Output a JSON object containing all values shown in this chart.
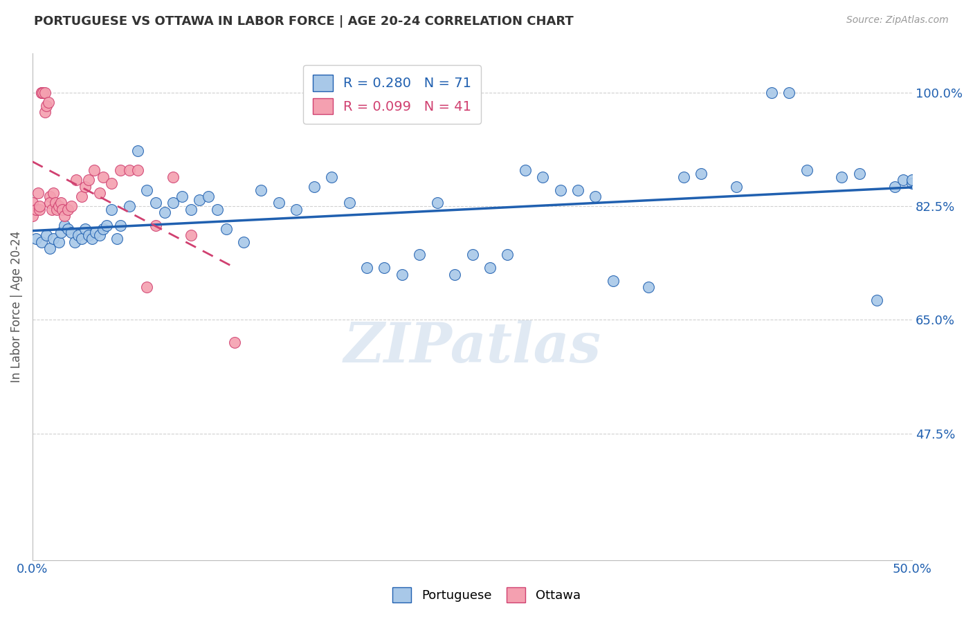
{
  "title": "PORTUGUESE VS OTTAWA IN LABOR FORCE | AGE 20-24 CORRELATION CHART",
  "source": "Source: ZipAtlas.com",
  "xlabel": "",
  "ylabel": "In Labor Force | Age 20-24",
  "xlim": [
    0.0,
    0.5
  ],
  "ylim": [
    0.28,
    1.06
  ],
  "yticks": [
    0.475,
    0.65,
    0.825,
    1.0
  ],
  "ytick_labels": [
    "47.5%",
    "65.0%",
    "82.5%",
    "100.0%"
  ],
  "xticks": [
    0.0,
    0.1,
    0.2,
    0.3,
    0.4,
    0.5
  ],
  "xtick_labels": [
    "0.0%",
    "",
    "",
    "",
    "",
    "50.0%"
  ],
  "blue_R": 0.28,
  "blue_N": 71,
  "pink_R": 0.099,
  "pink_N": 41,
  "blue_color": "#a8c8e8",
  "pink_color": "#f4a0b0",
  "trendline_blue_color": "#2060b0",
  "trendline_pink_color": "#d04070",
  "blue_x": [
    0.002,
    0.005,
    0.008,
    0.01,
    0.012,
    0.015,
    0.016,
    0.018,
    0.02,
    0.022,
    0.024,
    0.026,
    0.028,
    0.03,
    0.032,
    0.034,
    0.036,
    0.038,
    0.04,
    0.042,
    0.045,
    0.048,
    0.05,
    0.055,
    0.06,
    0.065,
    0.07,
    0.075,
    0.08,
    0.085,
    0.09,
    0.095,
    0.1,
    0.105,
    0.11,
    0.12,
    0.13,
    0.14,
    0.15,
    0.16,
    0.17,
    0.18,
    0.19,
    0.2,
    0.21,
    0.22,
    0.23,
    0.24,
    0.25,
    0.26,
    0.27,
    0.28,
    0.29,
    0.3,
    0.31,
    0.32,
    0.33,
    0.35,
    0.37,
    0.38,
    0.4,
    0.42,
    0.43,
    0.44,
    0.46,
    0.47,
    0.48,
    0.49,
    0.495,
    0.5,
    0.5
  ],
  "blue_y": [
    0.775,
    0.77,
    0.78,
    0.76,
    0.775,
    0.77,
    0.785,
    0.795,
    0.79,
    0.785,
    0.77,
    0.78,
    0.775,
    0.79,
    0.78,
    0.775,
    0.785,
    0.78,
    0.79,
    0.795,
    0.82,
    0.775,
    0.795,
    0.825,
    0.91,
    0.85,
    0.83,
    0.815,
    0.83,
    0.84,
    0.82,
    0.835,
    0.84,
    0.82,
    0.79,
    0.77,
    0.85,
    0.83,
    0.82,
    0.855,
    0.87,
    0.83,
    0.73,
    0.73,
    0.72,
    0.75,
    0.83,
    0.72,
    0.75,
    0.73,
    0.75,
    0.88,
    0.87,
    0.85,
    0.85,
    0.84,
    0.71,
    0.7,
    0.87,
    0.875,
    0.855,
    1.0,
    1.0,
    0.88,
    0.87,
    0.875,
    0.68,
    0.855,
    0.865,
    0.86,
    0.865
  ],
  "pink_x": [
    0.0,
    0.0,
    0.002,
    0.003,
    0.004,
    0.004,
    0.005,
    0.005,
    0.006,
    0.007,
    0.007,
    0.008,
    0.009,
    0.01,
    0.01,
    0.011,
    0.012,
    0.013,
    0.014,
    0.015,
    0.016,
    0.017,
    0.018,
    0.02,
    0.022,
    0.025,
    0.028,
    0.03,
    0.032,
    0.035,
    0.038,
    0.04,
    0.045,
    0.05,
    0.055,
    0.06,
    0.065,
    0.07,
    0.08,
    0.09,
    0.115
  ],
  "pink_y": [
    0.81,
    0.83,
    0.82,
    0.845,
    0.82,
    0.825,
    1.0,
    1.0,
    1.0,
    1.0,
    0.97,
    0.98,
    0.985,
    0.84,
    0.83,
    0.82,
    0.845,
    0.83,
    0.82,
    0.825,
    0.83,
    0.82,
    0.81,
    0.82,
    0.825,
    0.865,
    0.84,
    0.855,
    0.865,
    0.88,
    0.845,
    0.87,
    0.86,
    0.88,
    0.88,
    0.88,
    0.7,
    0.795,
    0.87,
    0.78,
    0.615
  ],
  "background_color": "#ffffff",
  "grid_color": "#d0d0d0"
}
